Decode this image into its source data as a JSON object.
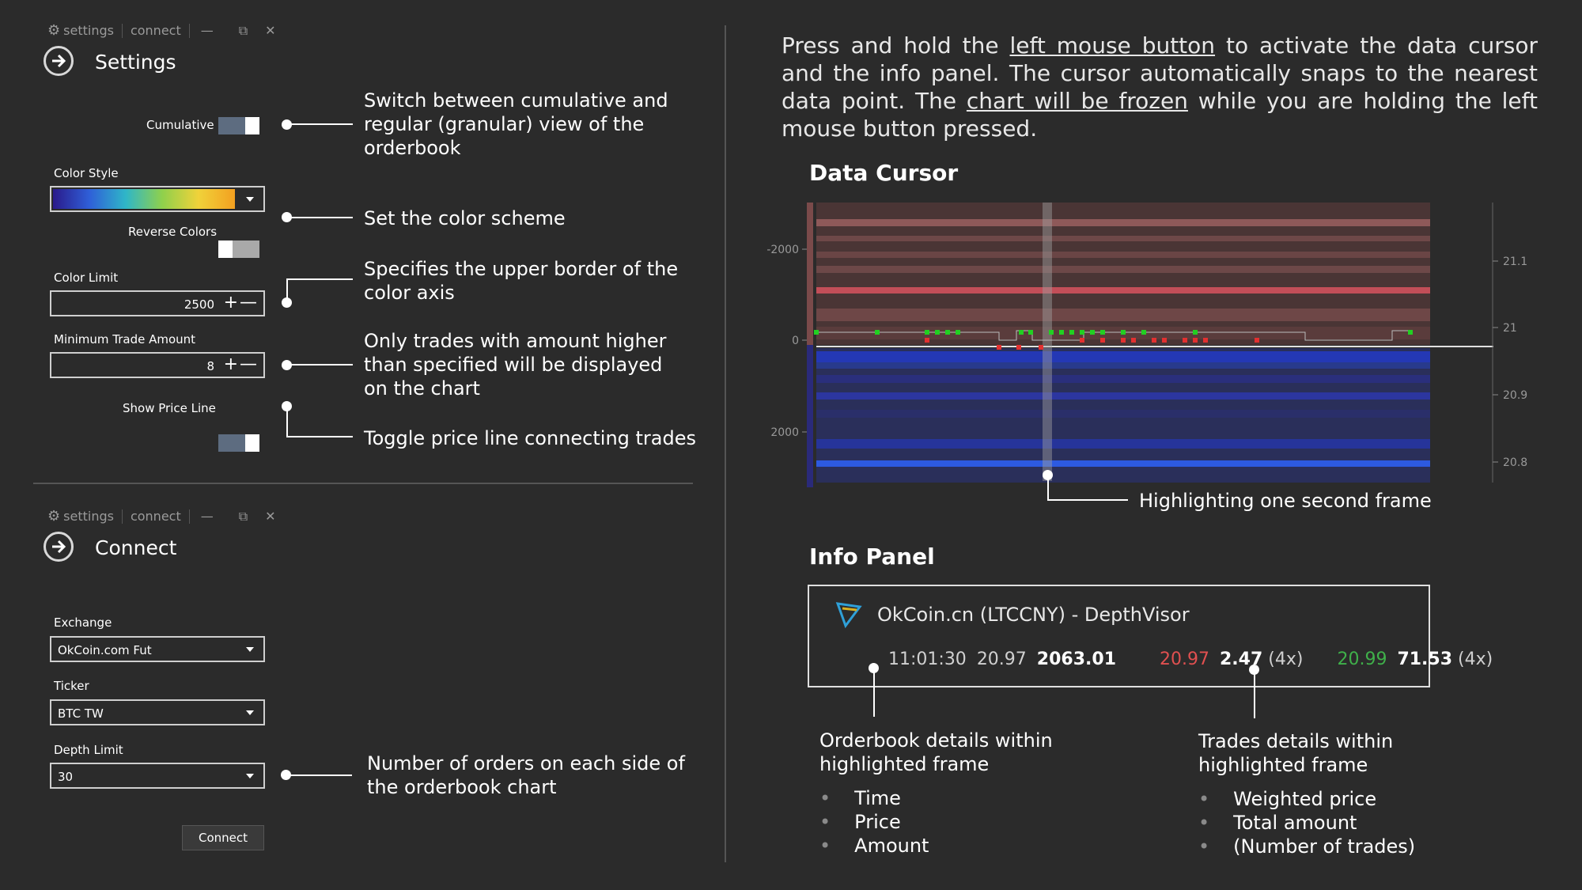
{
  "settings_panel": {
    "titlebar": {
      "settings": "settings",
      "connect": "connect",
      "minimize": "—",
      "restore": "⧉",
      "close": "✕"
    },
    "title": "Settings",
    "cumulative_label": "Cumulative",
    "cumulative_on": true,
    "color_style_label": "Color Style",
    "reverse_colors_label": "Reverse Colors",
    "reverse_colors_on": false,
    "color_limit_label": "Color Limit",
    "color_limit_value": "2500",
    "min_trade_label": "Minimum Trade Amount",
    "min_trade_value": "8",
    "show_price_line_label": "Show Price Line",
    "show_price_line_on": true
  },
  "connect_panel": {
    "titlebar": {
      "settings": "settings",
      "connect": "connect",
      "minimize": "—",
      "restore": "⧉",
      "close": "✕"
    },
    "title": "Connect",
    "exchange_label": "Exchange",
    "exchange_value": "OkCoin.com Fut",
    "ticker_label": "Ticker",
    "ticker_value": "BTC TW",
    "depth_limit_label": "Depth Limit",
    "depth_limit_value": "30",
    "connect_button": "Connect"
  },
  "annotations": {
    "cumulative": [
      "Switch between cumulative and",
      "regular (granular) view of the",
      "orderbook"
    ],
    "color_scheme": "Set the color scheme",
    "color_limit": [
      "Specifies the upper border of the",
      "color axis"
    ],
    "min_trade": [
      "Only trades with amount higher",
      "than specified will be displayed",
      "on the chart"
    ],
    "price_line": "Toggle price line connecting trades",
    "depth_limit": [
      "Number of orders on each side of",
      "the orderbook chart"
    ]
  },
  "intro": {
    "p1": "Press and hold the ",
    "link1": "left mouse button",
    "p2": " to activate the data cursor and the info panel. The cursor automatically snaps to the nearest data point. The ",
    "link2": "chart will be frozen",
    "p3": " while you are holding the left mouse button pressed."
  },
  "data_cursor": {
    "title": "Data Cursor",
    "highlight_label": "Highlighting one second frame",
    "left_ticks": [
      "-2000",
      "0",
      "2000"
    ],
    "right_ticks": [
      "21.1",
      "21",
      "20.9",
      "20.8"
    ]
  },
  "info_panel": {
    "title": "Info Panel",
    "header": "OkCoin.cn (LTCCNY) - DepthVisor",
    "time": "11:01:30",
    "price": "20.97",
    "amount": "2063.01",
    "sell_price": "20.97",
    "sell_amount": "2.47",
    "sell_count": "(4x)",
    "buy_price": "20.99",
    "buy_amount": "71.53",
    "buy_count": "(4x)",
    "orderbook_caption": [
      "Orderbook details within",
      "highlighted frame"
    ],
    "orderbook_items": [
      "Time",
      "Price",
      "Amount"
    ],
    "trades_caption": [
      "Trades details within",
      "highlighted frame"
    ],
    "trades_items": [
      "Weighted price",
      "Total amount",
      "(Number of trades)"
    ]
  },
  "colors": {
    "background": "#2b2b2b",
    "ask": "#d9575f",
    "bid": "#1f5fe6",
    "buy_trade": "#21d021",
    "sell_trade": "#e23030",
    "sell_text": "#e05050",
    "buy_text": "#3fb04a"
  }
}
